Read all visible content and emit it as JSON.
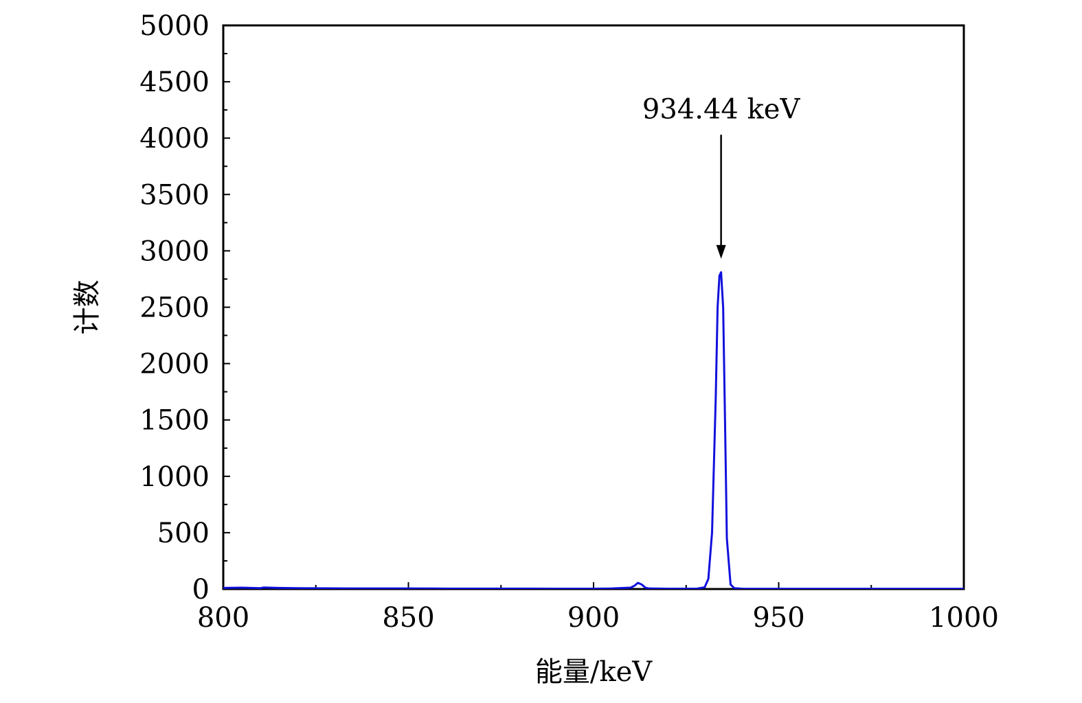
{
  "chart_data": {
    "type": "line",
    "xlabel": "能量/keV",
    "ylabel": "计数",
    "xlim": [
      800,
      1000
    ],
    "ylim": [
      0,
      5000
    ],
    "x_major_ticks": [
      800,
      850,
      900,
      950,
      1000
    ],
    "x_minor_ticks": [
      825,
      875,
      925,
      975
    ],
    "y_major_ticks": [
      0,
      500,
      1000,
      1500,
      2000,
      2500,
      3000,
      3500,
      4000,
      4500,
      5000
    ],
    "grid": false,
    "legend": "none",
    "series": [
      {
        "color": "#1010dd",
        "x": [
          800,
          805,
          810,
          811,
          815,
          820,
          830,
          840,
          850,
          860,
          870,
          880,
          890,
          900,
          905,
          910,
          911,
          912,
          913,
          914,
          915,
          920,
          925,
          928,
          930,
          931,
          932,
          933,
          933.5,
          934,
          934.44,
          935,
          935.5,
          936,
          937,
          938,
          940,
          945,
          950,
          960,
          970,
          980,
          990,
          1000
        ],
        "y": [
          10,
          12,
          8,
          14,
          10,
          8,
          6,
          5,
          5,
          4,
          4,
          4,
          3,
          3,
          5,
          12,
          28,
          55,
          40,
          12,
          5,
          3,
          3,
          4,
          15,
          90,
          500,
          1700,
          2500,
          2780,
          2810,
          2500,
          1500,
          450,
          40,
          8,
          3,
          2,
          2,
          2,
          2,
          2,
          2,
          2
        ]
      }
    ],
    "annotations": [
      {
        "text": "934.44 keV",
        "x": 934.44,
        "arrow_from_y": 4030,
        "arrow_to_y": 2930
      }
    ]
  }
}
